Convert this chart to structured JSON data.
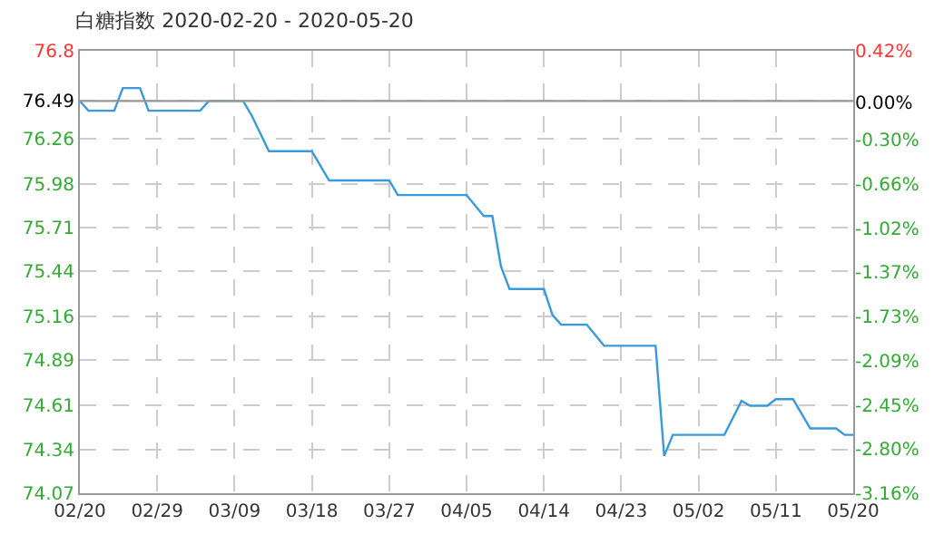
{
  "chart_data": {
    "type": "line",
    "title": "白糖指数 2020-02-20 - 2020-05-20",
    "x": [
      "2020-02-20",
      "2020-02-21",
      "2020-02-24",
      "2020-02-25",
      "2020-02-27",
      "2020-02-28",
      "2020-03-05",
      "2020-03-06",
      "2020-03-10",
      "2020-03-11",
      "2020-03-13",
      "2020-03-18",
      "2020-03-20",
      "2020-03-27",
      "2020-03-28",
      "2020-04-05",
      "2020-04-07",
      "2020-04-08",
      "2020-04-09",
      "2020-04-10",
      "2020-04-14",
      "2020-04-15",
      "2020-04-16",
      "2020-04-19",
      "2020-04-21",
      "2020-04-27",
      "2020-04-28",
      "2020-04-29",
      "2020-05-05",
      "2020-05-07",
      "2020-05-08",
      "2020-05-10",
      "2020-05-11",
      "2020-05-13",
      "2020-05-15",
      "2020-05-18",
      "2020-05-19",
      "2020-05-20"
    ],
    "series": [
      {
        "color": "#3a9ad9",
        "values": [
          76.49,
          76.43,
          76.43,
          76.57,
          76.57,
          76.43,
          76.43,
          76.49,
          76.49,
          76.4,
          76.18,
          76.18,
          76.0,
          76.0,
          75.91,
          75.91,
          75.78,
          75.78,
          75.47,
          75.33,
          75.33,
          75.17,
          75.11,
          75.11,
          74.98,
          74.98,
          74.3,
          74.43,
          74.43,
          74.64,
          74.61,
          74.61,
          74.65,
          74.65,
          74.47,
          74.47,
          74.43,
          74.43
        ]
      }
    ],
    "xlim": [
      "2020-02-20",
      "2020-05-20"
    ],
    "xticks": [
      {
        "value": "2020-02-20",
        "label": "02/20"
      },
      {
        "value": "2020-02-29",
        "label": "02/29"
      },
      {
        "value": "2020-03-09",
        "label": "03/09"
      },
      {
        "value": "2020-03-18",
        "label": "03/18"
      },
      {
        "value": "2020-03-27",
        "label": "03/27"
      },
      {
        "value": "2020-04-05",
        "label": "04/05"
      },
      {
        "value": "2020-04-14",
        "label": "04/14"
      },
      {
        "value": "2020-04-23",
        "label": "04/23"
      },
      {
        "value": "2020-05-02",
        "label": "05/02"
      },
      {
        "value": "2020-05-11",
        "label": "05/11"
      },
      {
        "value": "2020-05-20",
        "label": "05/20"
      }
    ],
    "ylim": [
      74.07,
      76.8
    ],
    "yticks": [
      76.8,
      76.49,
      76.26,
      75.98,
      75.71,
      75.44,
      75.16,
      74.89,
      74.61,
      74.34,
      74.07
    ],
    "y2lim": [
      -3.16,
      0.42
    ],
    "y2ticks": [
      {
        "value": 0.42,
        "label": "0.42%"
      },
      {
        "value": 0,
        "label": "0.00%"
      },
      {
        "value": -0.3,
        "label": "-0.30%"
      },
      {
        "value": -0.66,
        "label": "-0.66%"
      },
      {
        "value": -1.02,
        "label": "-1.02%"
      },
      {
        "value": -1.37,
        "label": "-1.37%"
      },
      {
        "value": -1.73,
        "label": "-1.73%"
      },
      {
        "value": -2.09,
        "label": "-2.09%"
      },
      {
        "value": -2.45,
        "label": "-2.45%"
      },
      {
        "value": -2.8,
        "label": "-2.80%"
      },
      {
        "value": -3.16,
        "label": "-3.16%"
      }
    ],
    "ref_lines": [
      {
        "axis": "y",
        "value": 76.49,
        "color": "#999999"
      }
    ],
    "grid": true,
    "legend": false,
    "marker": "none",
    "line_style": "solid"
  }
}
